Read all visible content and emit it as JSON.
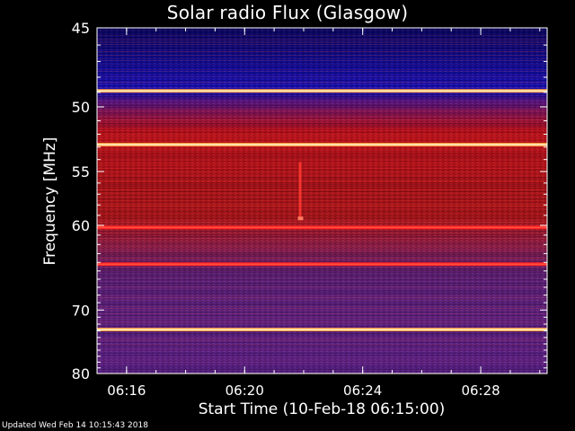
{
  "chart_data": {
    "type": "heatmap",
    "title": "Solar radio Flux (Glasgow)",
    "xlabel": "Start Time (10-Feb-18 06:15:00)",
    "ylabel": "Frequency [MHz]",
    "x_ticks": [
      "06:16",
      "06:20",
      "06:24",
      "06:28"
    ],
    "y_ticks": [
      "45",
      "50",
      "55",
      "60",
      "70",
      "80"
    ],
    "y_axis_scale": "reciprocal",
    "ylim": [
      45,
      80
    ],
    "xlim": [
      "06:15:00",
      "06:30:15"
    ],
    "colormap": [
      "#00004a",
      "#0000ff",
      "#6a1fa0",
      "#c01010",
      "#ff2020",
      "#ffd27f",
      "#ffffff"
    ],
    "bright_lines_mhz": [
      48.9,
      52.8,
      60.2,
      64.2,
      72.8
    ],
    "footer": "Updated Wed Feb 14 10:15:43 2018"
  }
}
